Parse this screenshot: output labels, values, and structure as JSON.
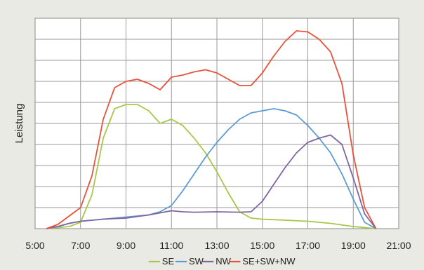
{
  "chart_data": {
    "type": "line",
    "title": "",
    "xlabel": "",
    "ylabel": "Leistung",
    "xlim": [
      5,
      21
    ],
    "ylim": [
      0,
      10
    ],
    "x_ticks": [
      "5:00",
      "7:00",
      "9:00",
      "11:00",
      "13:00",
      "15:00",
      "17:00",
      "19:00",
      "21:00"
    ],
    "x_tick_values": [
      5,
      7,
      9,
      11,
      13,
      15,
      17,
      19,
      21
    ],
    "y_grid_values": [
      1,
      2,
      3,
      4,
      5,
      6,
      7,
      8,
      9,
      10
    ],
    "grid": true,
    "legend_position": "bottom",
    "series": [
      {
        "name": "SE",
        "color": "#a6c84a",
        "points": [
          [
            5.5,
            0
          ],
          [
            6,
            0.05
          ],
          [
            6.5,
            0.1
          ],
          [
            7,
            0.3
          ],
          [
            7.5,
            1.6
          ],
          [
            8,
            4.3
          ],
          [
            8.5,
            5.7
          ],
          [
            9,
            5.9
          ],
          [
            9.5,
            5.9
          ],
          [
            10,
            5.6
          ],
          [
            10.5,
            5
          ],
          [
            11,
            5.2
          ],
          [
            11.5,
            4.9
          ],
          [
            12,
            4.3
          ],
          [
            12.5,
            3.6
          ],
          [
            13,
            2.7
          ],
          [
            13.5,
            1.7
          ],
          [
            14,
            0.8
          ],
          [
            14.5,
            0.5
          ],
          [
            15,
            0.45
          ],
          [
            16,
            0.4
          ],
          [
            17,
            0.35
          ],
          [
            18,
            0.25
          ],
          [
            19,
            0.1
          ],
          [
            19.5,
            0.05
          ],
          [
            20,
            0
          ]
        ]
      },
      {
        "name": "SW",
        "color": "#5b9bd5",
        "points": [
          [
            5.5,
            0
          ],
          [
            6,
            0.1
          ],
          [
            6.5,
            0.25
          ],
          [
            7,
            0.35
          ],
          [
            8,
            0.45
          ],
          [
            9,
            0.55
          ],
          [
            10,
            0.65
          ],
          [
            10.5,
            0.8
          ],
          [
            11,
            1.1
          ],
          [
            11.5,
            1.8
          ],
          [
            12,
            2.6
          ],
          [
            12.5,
            3.4
          ],
          [
            13,
            4.1
          ],
          [
            13.5,
            4.7
          ],
          [
            14,
            5.2
          ],
          [
            14.5,
            5.5
          ],
          [
            15,
            5.6
          ],
          [
            15.5,
            5.7
          ],
          [
            16,
            5.6
          ],
          [
            16.5,
            5.4
          ],
          [
            17,
            4.9
          ],
          [
            17.5,
            4.3
          ],
          [
            18,
            3.6
          ],
          [
            18.5,
            2.6
          ],
          [
            19,
            1.4
          ],
          [
            19.5,
            0.3
          ],
          [
            20,
            0
          ]
        ]
      },
      {
        "name": "NW",
        "color": "#8064a2",
        "points": [
          [
            5.5,
            0
          ],
          [
            6,
            0.1
          ],
          [
            6.5,
            0.25
          ],
          [
            7,
            0.35
          ],
          [
            8,
            0.45
          ],
          [
            9,
            0.5
          ],
          [
            10,
            0.65
          ],
          [
            10.5,
            0.75
          ],
          [
            11,
            0.85
          ],
          [
            11.5,
            0.8
          ],
          [
            12,
            0.78
          ],
          [
            13,
            0.8
          ],
          [
            14,
            0.78
          ],
          [
            14.5,
            0.8
          ],
          [
            15,
            1.3
          ],
          [
            15.5,
            2.1
          ],
          [
            16,
            2.9
          ],
          [
            16.5,
            3.6
          ],
          [
            17,
            4.1
          ],
          [
            17.5,
            4.3
          ],
          [
            18,
            4.45
          ],
          [
            18.5,
            4
          ],
          [
            19,
            2.4
          ],
          [
            19.5,
            0.7
          ],
          [
            20,
            0
          ]
        ]
      },
      {
        "name": "SE+SW+NW",
        "color": "#e8513a",
        "points": [
          [
            5.5,
            0
          ],
          [
            6,
            0.2
          ],
          [
            6.5,
            0.6
          ],
          [
            7,
            1
          ],
          [
            7.5,
            2.5
          ],
          [
            8,
            5.2
          ],
          [
            8.5,
            6.7
          ],
          [
            9,
            7
          ],
          [
            9.5,
            7.1
          ],
          [
            10,
            6.9
          ],
          [
            10.5,
            6.6
          ],
          [
            11,
            7.2
          ],
          [
            11.5,
            7.3
          ],
          [
            12,
            7.45
          ],
          [
            12.5,
            7.55
          ],
          [
            13,
            7.4
          ],
          [
            13.5,
            7.1
          ],
          [
            14,
            6.8
          ],
          [
            14.5,
            6.8
          ],
          [
            15,
            7.4
          ],
          [
            15.5,
            8.2
          ],
          [
            16,
            8.9
          ],
          [
            16.5,
            9.4
          ],
          [
            17,
            9.35
          ],
          [
            17.5,
            9
          ],
          [
            18,
            8.4
          ],
          [
            18.5,
            6.9
          ],
          [
            19,
            3.5
          ],
          [
            19.5,
            1
          ],
          [
            20,
            0
          ]
        ]
      }
    ]
  }
}
